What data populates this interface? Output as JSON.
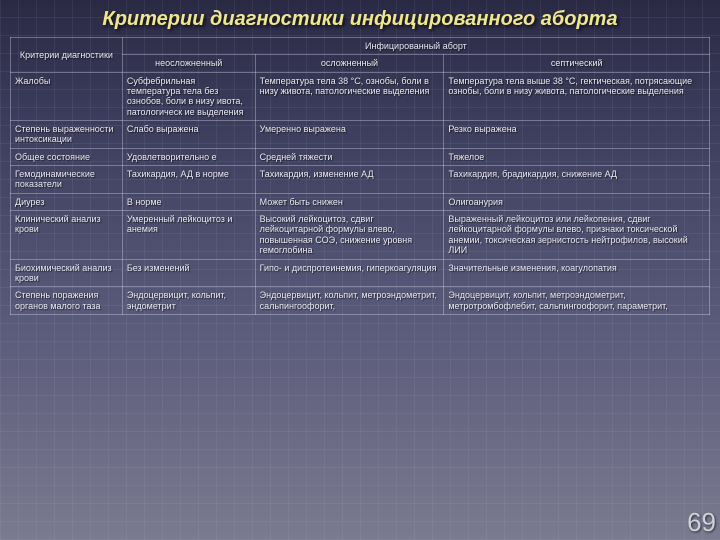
{
  "title": "Критерии диагностики инфицированного аборта",
  "title_fontsize": 20,
  "title_color": "#f0e68c",
  "text_color": "#e8e8f0",
  "border_color": "rgba(230,230,240,0.35)",
  "page_number": "69",
  "table": {
    "header_top_left": "Критерии диагностики",
    "header_top_right": "Инфицированный аборт",
    "subheaders": [
      "неосложненный",
      "осложненный",
      "септический"
    ],
    "col_widths": [
      "16%",
      "19%",
      "27%",
      "38%"
    ],
    "rows": [
      {
        "label": "Жалобы",
        "cells": [
          "Субфебрильная температура тела без ознобов, боли в низу ивота, патологическ ие выделения",
          "Температура тела 38 °С, ознобы, боли в низу живота, патологические выделения",
          "Температура тела выше 38 °С, гектическая, потрясающие ознобы, боли в низу живота, патологические выделения"
        ]
      },
      {
        "label": "Степень выраженности интоксикации",
        "cells": [
          "Слабо выражена",
          "Умеренно выражена",
          "Резко выражена"
        ]
      },
      {
        "label": "Общее состояние",
        "cells": [
          "Удовлетворительно е",
          "Средней тяжести",
          "Тяжелое"
        ]
      },
      {
        "label": "Гемодинамические показатели",
        "cells": [
          "Тахикардия, АД в норме",
          "Тахикардия, изменение АД",
          "Тахикардия, брадикардия, снижение АД"
        ]
      },
      {
        "label": "Диурез",
        "cells": [
          "В норме",
          "Может быть снижен",
          "Олигоанурия"
        ]
      },
      {
        "label": "Клинический анализ крови",
        "cells": [
          "Умеренный лейкоцитоз и анемия",
          "Высокий лейкоцитоз, сдвиг лейкоцитарной формулы влево, повышенная СОЭ, снижение уровня гемоглобина",
          "Выраженный лейкоцитоз или лейкопения, сдвиг лейкоцитарной формулы влево, признаки токсической анемии, токсическая зернистость нейтрофилов, высокий ЛИИ"
        ]
      },
      {
        "label": "Биохимический анализ крови",
        "cells": [
          "Без изменений",
          "Гипо- и диспротеинемия, гиперкоагуляция",
          "Значительные изменения, коагулопатия"
        ]
      },
      {
        "label": "Степень поражения органов малого таза",
        "cells": [
          "Эндоцервицит, кольпит, эндометрит",
          "Эндоцервицит, кольпит, метроэндометрит, сальпингоофорит,",
          "Эндоцервицит, кольпит, метроэндометрит, метротромбофлебит, сальпингоофорит, параметрит,"
        ]
      }
    ]
  }
}
